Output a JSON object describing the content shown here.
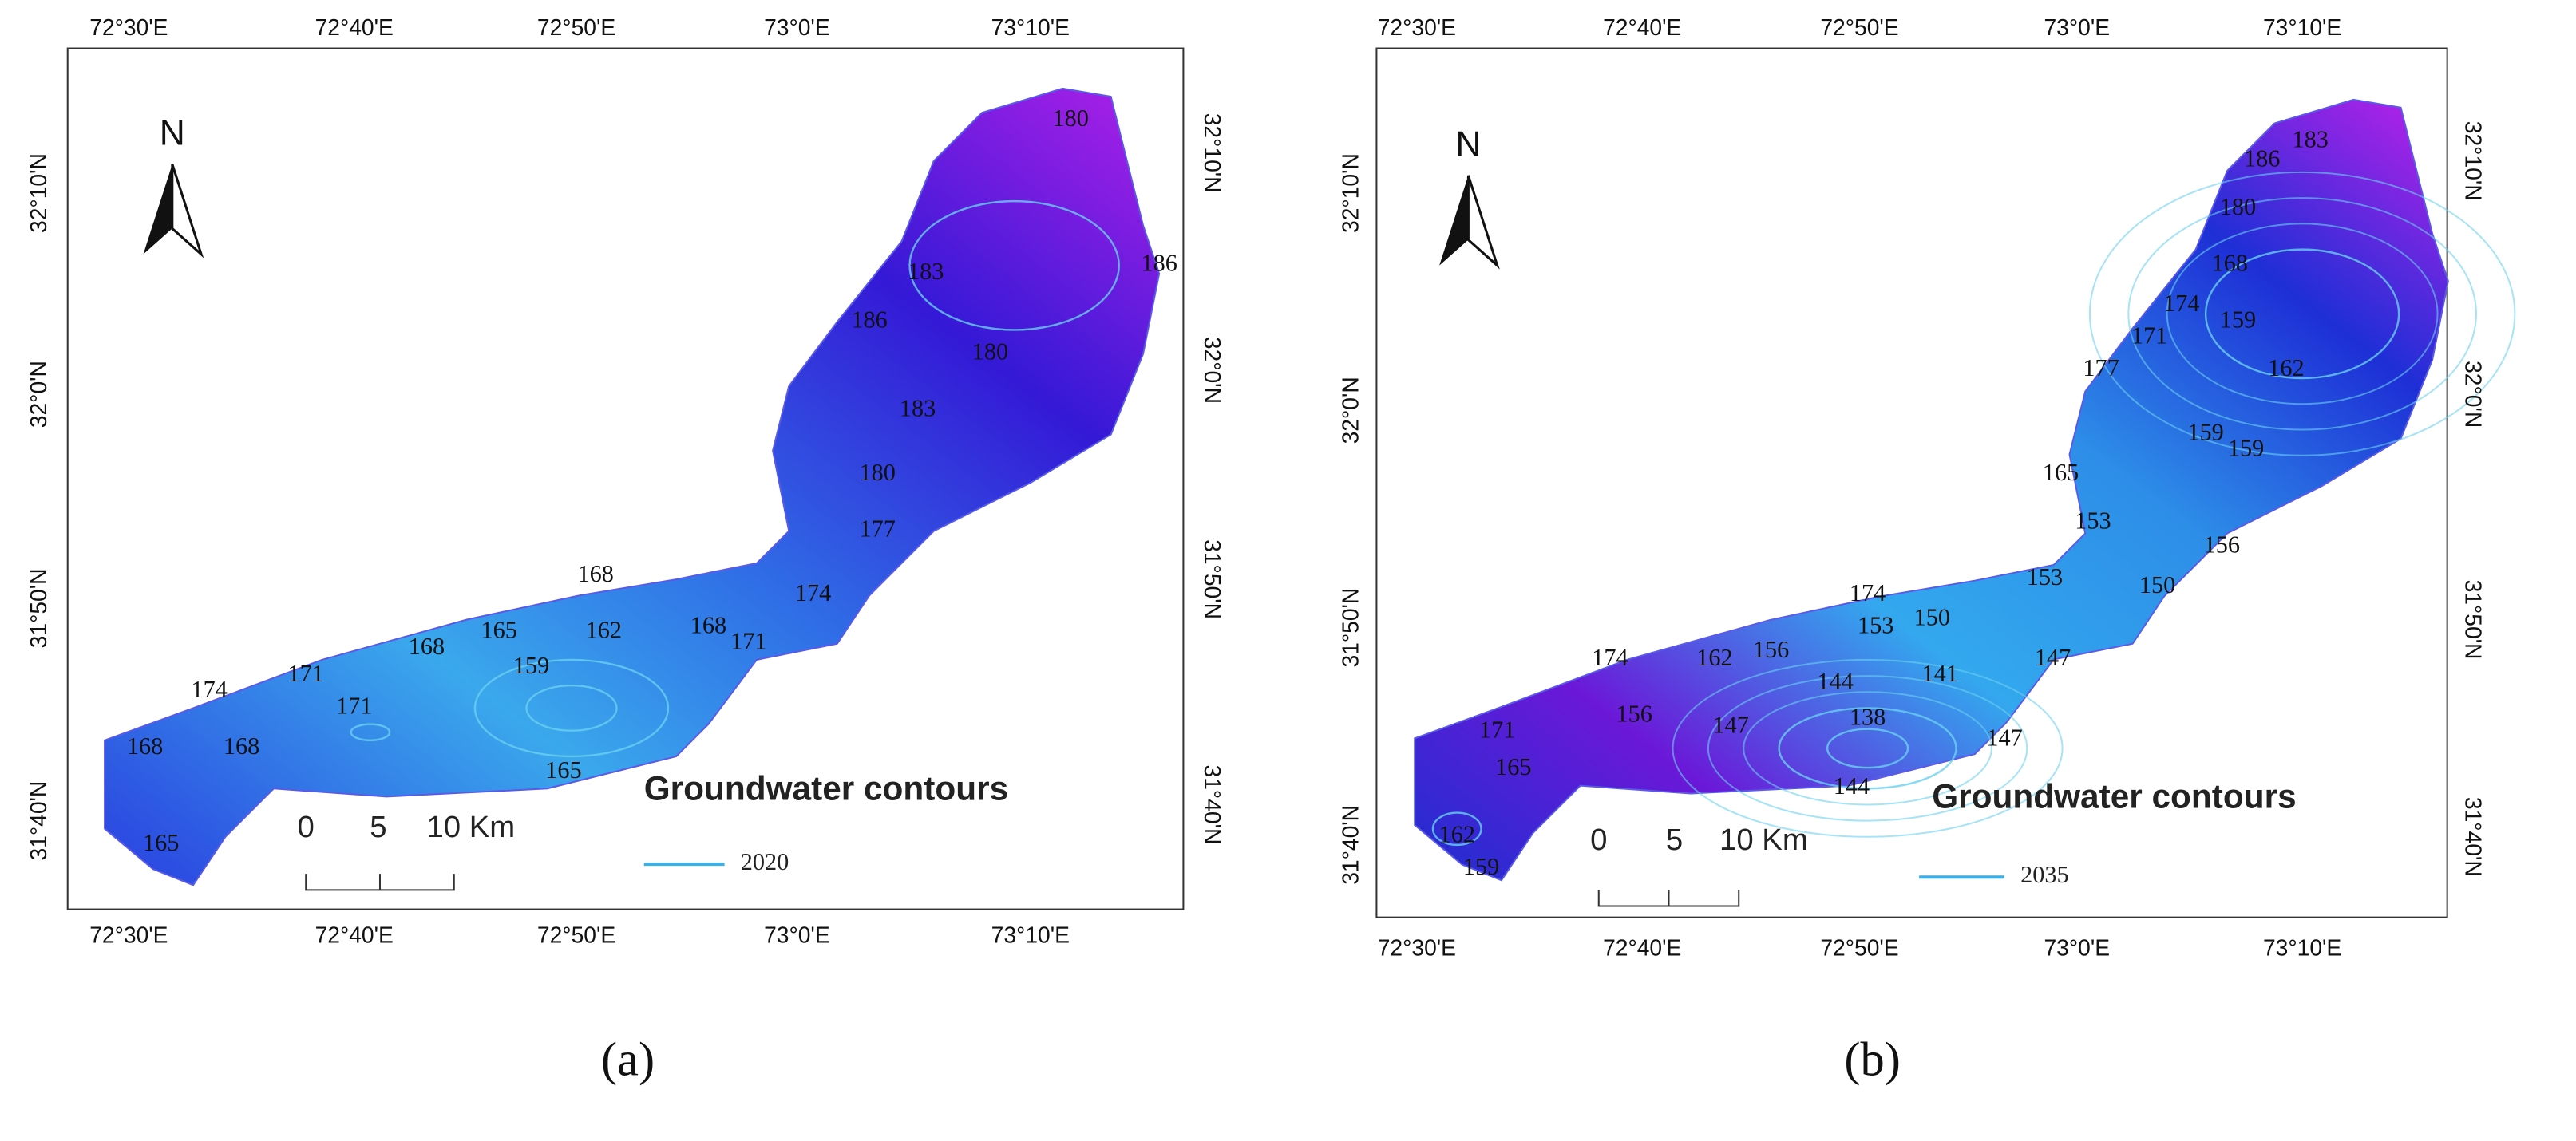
{
  "panels": [
    {
      "label": "(a)",
      "top_labels": [
        "72°30'E",
        "72°40'E",
        "72°50'E",
        "73°0'E",
        "73°10'E"
      ],
      "bottom_labels": [
        "72°30'E",
        "72°40'E",
        "72°50'E",
        "73°0'E",
        "73°10'E"
      ],
      "left_labels": [
        "32°10'N",
        "32°0'N",
        "31°50'N",
        "31°40'N"
      ],
      "right_labels": [
        "32°10'N",
        "32°0'N",
        "31°50'N",
        "31°40'N"
      ],
      "north": "N",
      "legend_title": "Groundwater contours",
      "legend_item": "2020",
      "scale_labels": [
        "0",
        "5",
        "10 Km"
      ],
      "contour_labels": [
        "180",
        "183",
        "186",
        "180",
        "186",
        "183",
        "180",
        "177",
        "174",
        "168",
        "165",
        "162",
        "168",
        "171",
        "174",
        "159",
        "171",
        "168",
        "168",
        "168",
        "171",
        "165",
        "165"
      ]
    },
    {
      "label": "(b)",
      "top_labels": [
        "72°30'E",
        "72°40'E",
        "72°50'E",
        "73°0'E",
        "73°10'E"
      ],
      "bottom_labels": [
        "72°30'E",
        "72°40'E",
        "72°50'E",
        "73°0'E",
        "73°10'E"
      ],
      "left_labels": [
        "32°10'N",
        "32°0'N",
        "31°50'N",
        "31°40'N"
      ],
      "right_labels": [
        "32°10'N",
        "32°0'N",
        "31°50'N",
        "31°40'N"
      ],
      "north": "N",
      "legend_title": "Groundwater contours",
      "legend_item": "2035",
      "scale_labels": [
        "0",
        "5",
        "10 Km"
      ],
      "contour_labels": [
        "183",
        "186",
        "180",
        "168",
        "174",
        "171",
        "177",
        "159",
        "162",
        "159",
        "159",
        "165",
        "153",
        "156",
        "153",
        "150",
        "174",
        "153",
        "150",
        "147",
        "174",
        "162",
        "156",
        "144",
        "141",
        "138",
        "147",
        "147",
        "144",
        "156",
        "171",
        "165",
        "162",
        "159"
      ]
    }
  ]
}
